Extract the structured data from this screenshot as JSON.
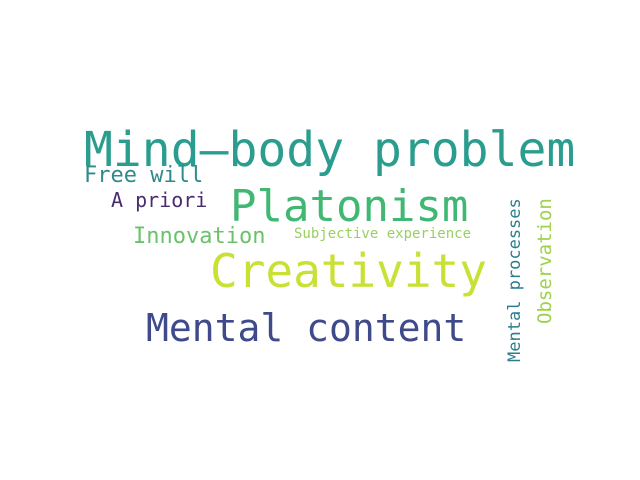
{
  "wordcloud": {
    "words": [
      {
        "id": "mindbody",
        "text": "Mind–body problem",
        "color": "#2a9d8f"
      },
      {
        "id": "freewill",
        "text": "Free will",
        "color": "#2e8a8c"
      },
      {
        "id": "apriori",
        "text": "A priori",
        "color": "#4a2c6e"
      },
      {
        "id": "platonism",
        "text": "Platonism",
        "color": "#40b773"
      },
      {
        "id": "innovation",
        "text": "Innovation",
        "color": "#6cc16b"
      },
      {
        "id": "subjective",
        "text": "Subjective experience",
        "color": "#98d05f"
      },
      {
        "id": "creativity",
        "text": "Creativity",
        "color": "#c9e034"
      },
      {
        "id": "mental",
        "text": "Mental content",
        "color": "#3f4a8a"
      },
      {
        "id": "processes",
        "text": "Mental processes",
        "color": "#2a7d8e"
      },
      {
        "id": "observe",
        "text": "Observation",
        "color": "#9fd24a"
      }
    ]
  }
}
